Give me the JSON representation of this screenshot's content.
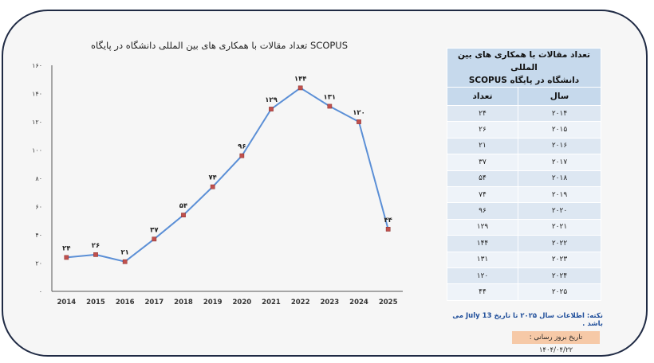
{
  "colors": {
    "line": "#5b8fd6",
    "marker": "#c0504d",
    "header_bg": "#c6d9ec"
  },
  "chart_data": {
    "type": "line",
    "title": "تعداد مقالات با همکاری های بین المللی دانشگاه در پایگاه SCOPUS",
    "x": [
      "2014",
      "2015",
      "2016",
      "2017",
      "2018",
      "2019",
      "2020",
      "2021",
      "2022",
      "2023",
      "2024",
      "2025"
    ],
    "series": [
      {
        "values": [
          24,
          26,
          21,
          37,
          54,
          74,
          96,
          129,
          144,
          131,
          120,
          44
        ]
      }
    ],
    "value_labels": [
      "۲۴",
      "۲۶",
      "۲۱",
      "۳۷",
      "۵۴",
      "۷۴",
      "۹۶",
      "۱۲۹",
      "۱۴۴",
      "۱۳۱",
      "۱۲۰",
      "۴۴"
    ],
    "ylim": [
      0,
      160
    ],
    "y_ticks": [
      0,
      20,
      40,
      60,
      80,
      100,
      120,
      140,
      160
    ],
    "y_tick_labels": [
      "۰",
      "۲۰",
      "۴۰",
      "۶۰",
      "۸۰",
      "۱۰۰",
      "۱۲۰",
      "۱۴۰",
      "۱۶۰"
    ],
    "grid": false
  },
  "table": {
    "title_line1": "تعداد مقالات با همکاری های بین المللی",
    "title_line2": "دانشگاه در پایگاه SCOPUS",
    "col_year": "سال",
    "col_count": "تعداد",
    "rows": [
      {
        "year": "۲۰۱۴",
        "count": "۲۴"
      },
      {
        "year": "۲۰۱۵",
        "count": "۲۶"
      },
      {
        "year": "۲۰۱۶",
        "count": "۲۱"
      },
      {
        "year": "۲۰۱۷",
        "count": "۳۷"
      },
      {
        "year": "۲۰۱۸",
        "count": "۵۴"
      },
      {
        "year": "۲۰۱۹",
        "count": "۷۴"
      },
      {
        "year": "۲۰۲۰",
        "count": "۹۶"
      },
      {
        "year": "۲۰۲۱",
        "count": "۱۲۹"
      },
      {
        "year": "۲۰۲۲",
        "count": "۱۴۴"
      },
      {
        "year": "۲۰۲۳",
        "count": "۱۳۱"
      },
      {
        "year": "۲۰۲۴",
        "count": "۱۲۰"
      },
      {
        "year": "۲۰۲۵",
        "count": "۴۴"
      }
    ]
  },
  "note": "نکته: اطلاعات سال ۲۰۲۵ تا تاریخ 13 July می باشد .",
  "update_date": "تاریخ بروز رسانی : ۱۴۰۴/۰۴/۲۲"
}
